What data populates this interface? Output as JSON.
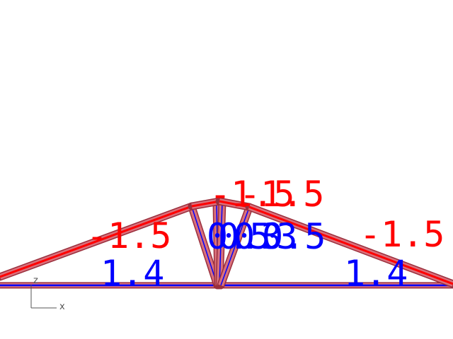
{
  "colors": {
    "compression": "#ff0000",
    "tension": "#0000ff",
    "member_fill": "#d9707c",
    "member_edge": "#9a2f3c",
    "axes": "#555555"
  },
  "axes": {
    "z_label": "z",
    "x_label": "x"
  },
  "members": [
    {
      "name": "left-top-chord",
      "force_label": "-1.5",
      "state": "compression"
    },
    {
      "name": "right-top-chord",
      "force_label": "-1.5",
      "state": "compression"
    },
    {
      "name": "apex-left",
      "force_label": "-1.5",
      "state": "compression"
    },
    {
      "name": "apex-right",
      "force_label": "-1.5",
      "state": "compression"
    },
    {
      "name": "left-bottom-chord",
      "force_label": "1.4",
      "state": "tension"
    },
    {
      "name": "right-bottom-chord",
      "force_label": "1.4",
      "state": "tension"
    },
    {
      "name": "web-1",
      "force_label": "0.5",
      "state": "tension"
    },
    {
      "name": "web-2",
      "force_label": "0.3",
      "state": "tension"
    },
    {
      "name": "web-3",
      "force_label": "0.3",
      "state": "tension"
    },
    {
      "name": "web-4",
      "force_label": "0.5",
      "state": "tension"
    }
  ]
}
